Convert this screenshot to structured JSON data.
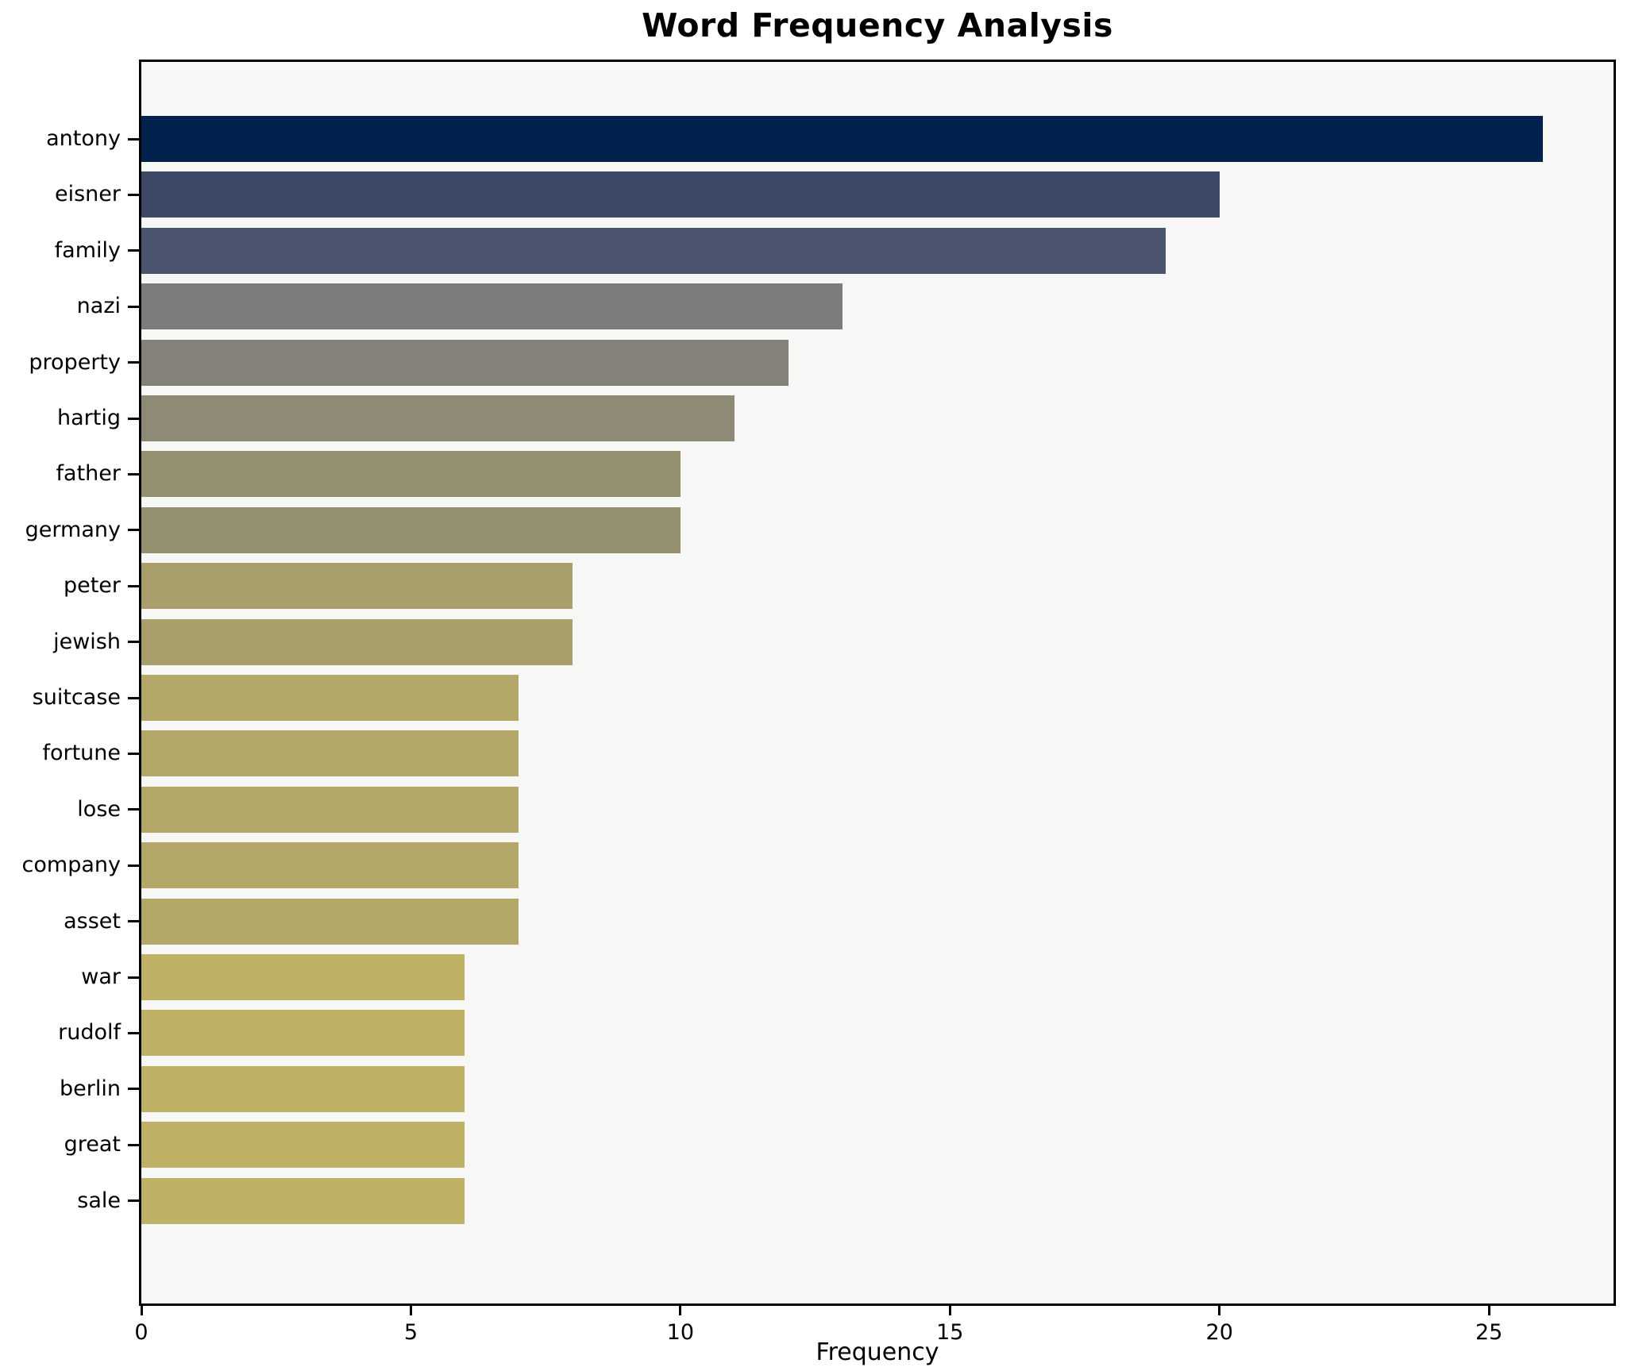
{
  "title": "Word Frequency Analysis",
  "xlabel": "Frequency",
  "colors": {
    "page_background": "#ffffff",
    "plot_background": "#f7f7f5",
    "spine": "#000000",
    "text": "#000000"
  },
  "chart_data": {
    "type": "bar",
    "orientation": "horizontal",
    "title": "Word Frequency Analysis",
    "xlabel": "Frequency",
    "ylabel": "",
    "grid": false,
    "legend": false,
    "xlim": [
      0,
      27.31
    ],
    "xticks": [
      0,
      5,
      10,
      15,
      20,
      25
    ],
    "categories": [
      "antony",
      "eisner",
      "family",
      "nazi",
      "property",
      "hartig",
      "father",
      "germany",
      "peter",
      "jewish",
      "suitcase",
      "fortune",
      "lose",
      "company",
      "asset",
      "war",
      "rudolf",
      "berlin",
      "great",
      "sale"
    ],
    "values": [
      26,
      20,
      19,
      13,
      12,
      11,
      10,
      10,
      8,
      8,
      7,
      7,
      7,
      7,
      7,
      6,
      6,
      6,
      6,
      6
    ],
    "bar_colors": [
      "#02224d",
      "#3e4968",
      "#4a546e",
      "#7c7c7a",
      "#84817b",
      "#8e8a75",
      "#959070",
      "#959070",
      "#a89f6c",
      "#a89f6c",
      "#b3a86a",
      "#b3a86a",
      "#b3a86a",
      "#b3a86a",
      "#b3a86a",
      "#beb064",
      "#beb064",
      "#beb064",
      "#beb064",
      "#beb064"
    ]
  }
}
